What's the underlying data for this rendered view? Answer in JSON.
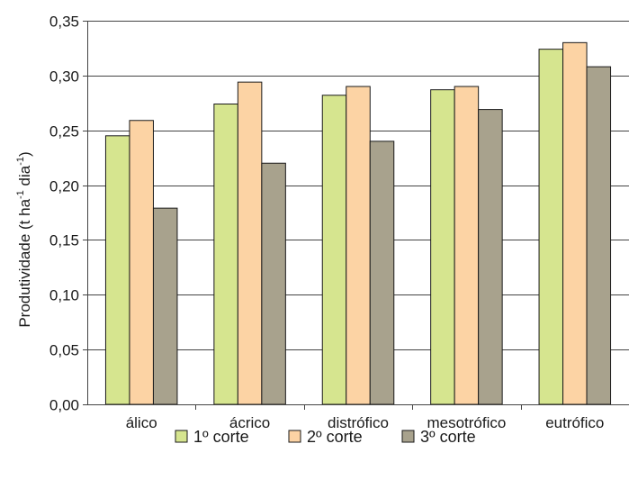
{
  "chart_data": {
    "type": "bar",
    "categories": [
      "álico",
      "ácrico",
      "distrófico",
      "mesotrófico",
      "eutrófico"
    ],
    "series": [
      {
        "name": "1º corte",
        "color": "#d6e58f",
        "values": [
          0.245,
          0.274,
          0.282,
          0.287,
          0.324
        ]
      },
      {
        "name": "2º corte",
        "color": "#fcd3a4",
        "values": [
          0.259,
          0.294,
          0.29,
          0.29,
          0.33
        ]
      },
      {
        "name": "3º corte",
        "color": "#a8a28d",
        "values": [
          0.179,
          0.22,
          0.24,
          0.269,
          0.308
        ]
      }
    ],
    "ylim": [
      0,
      0.35
    ],
    "y_ticks": [
      "0,00",
      "0,05",
      "0,10",
      "0,15",
      "0,20",
      "0,25",
      "0,30",
      "0,35"
    ],
    "ylabel": {
      "main": "Produtividade (t ha",
      "sup1": "-1",
      "mid": " dia",
      "sup2": "-1",
      "end": ")"
    },
    "xlabel": "",
    "grid": true,
    "legend_position": "bottom-center"
  }
}
